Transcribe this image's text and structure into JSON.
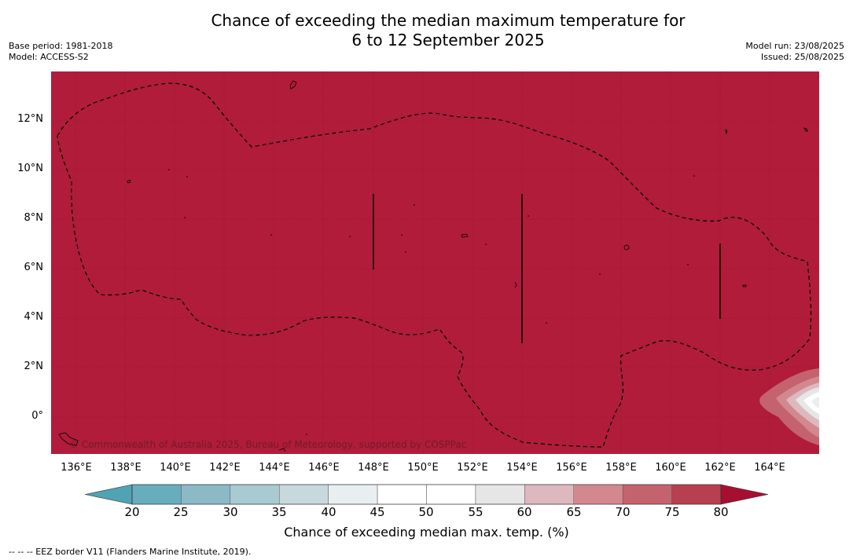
{
  "title": {
    "line1": "Chance of exceeding the median maximum temperature for",
    "line2": "6 to 12 September 2025"
  },
  "meta_left": {
    "base_period": "Base period: 1981-2018",
    "model": "Model: ACCESS-S2"
  },
  "meta_right": {
    "model_run": "Model run: 23/08/2025",
    "issued": "Issued: 25/08/2025"
  },
  "map": {
    "background_color": "#b01c3a",
    "y_ticks": [
      "12°N",
      "10°N",
      "8°N",
      "6°N",
      "4°N",
      "2°N",
      "0°"
    ],
    "x_ticks": [
      "136°E",
      "138°E",
      "140°E",
      "142°E",
      "144°E",
      "146°E",
      "148°E",
      "150°E",
      "152°E",
      "154°E",
      "156°E",
      "158°E",
      "160°E",
      "162°E",
      "164°E"
    ],
    "copyright": "© Commonwealth of Australia 2025, Bureau of Meteorology, supported by COSPPac"
  },
  "colorbar": {
    "ticks": [
      "20",
      "25",
      "30",
      "35",
      "40",
      "45",
      "50",
      "55",
      "60",
      "65",
      "70",
      "75",
      "80"
    ],
    "colors": [
      "#67adbd",
      "#8bb9c6",
      "#a8cad1",
      "#c8d9dd",
      "#e9eff1",
      "#ffffff",
      "#ffffff",
      "#e6e6e6",
      "#deb8bf",
      "#d38890",
      "#c4636e",
      "#b73f51"
    ],
    "low_extension_color": "#4fa3b3",
    "high_extension_color": "#a60f30",
    "label": "Chance of exceeding median max. temp. (%)"
  },
  "footnote": "--  --  -- EEZ border V11 (Flanders Marine Institute, 2019)."
}
